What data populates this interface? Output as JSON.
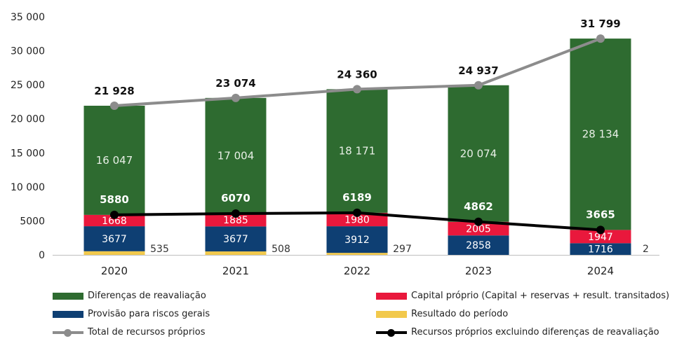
{
  "chart_data": {
    "type": "bar",
    "stacked": true,
    "categories": [
      "2020",
      "2021",
      "2022",
      "2023",
      "2024"
    ],
    "ylim": [
      0,
      35000
    ],
    "y_ticks": [
      "0",
      "5000",
      "10 000",
      "15 000",
      "20 000",
      "25 000",
      "30 000",
      "35 000"
    ],
    "y_tick_values": [
      0,
      5000,
      10000,
      15000,
      20000,
      25000,
      30000,
      35000
    ],
    "grid": false,
    "legend_position": "bottom",
    "series": [
      {
        "name": "Resultado do período",
        "color": "#F2C94C",
        "values": [
          535,
          508,
          297,
          0,
          2
        ],
        "labels": [
          "535",
          "508",
          "297",
          "",
          "2"
        ],
        "label_position": "outside-right"
      },
      {
        "name": "Provisão para riscos gerais",
        "color": "#0E3F73",
        "values": [
          3677,
          3677,
          3912,
          2858,
          1716
        ],
        "labels": [
          "3677",
          "3677",
          "3912",
          "2858",
          "1716"
        ]
      },
      {
        "name": "Capital próprio (Capital + reservas + result. transitados)",
        "color": "#E9183C",
        "values": [
          1668,
          1885,
          1980,
          2005,
          1947
        ],
        "labels": [
          "1668",
          "1885",
          "1980",
          "2005",
          "1947"
        ]
      },
      {
        "name": "Diferenças de reavaliação",
        "color": "#2E6B30",
        "values": [
          16047,
          17004,
          18171,
          20074,
          28134
        ],
        "labels": [
          "16 047",
          "17 004",
          "18 171",
          "20 074",
          "28 134"
        ]
      }
    ],
    "lines": [
      {
        "name": "Total de recursos próprios",
        "color": "#8C8C8C",
        "values": [
          21928,
          23074,
          24360,
          24937,
          31799
        ],
        "labels": [
          "21 928",
          "23 074",
          "24 360",
          "24 937",
          "31 799"
        ]
      },
      {
        "name": "Recursos próprios excluindo diferenças de reavaliação",
        "color": "#000000",
        "values": [
          5880,
          6070,
          6189,
          4862,
          3665
        ],
        "labels": [
          "5880",
          "6070",
          "6189",
          "4862",
          "3665"
        ]
      }
    ]
  },
  "legend": [
    {
      "label": "Diferenças de reavaliação",
      "kind": "box",
      "color": "#2E6B30"
    },
    {
      "label": "Capital próprio (Capital + reservas + result. transitados)",
      "kind": "box",
      "color": "#E9183C"
    },
    {
      "label": "Provisão para riscos gerais",
      "kind": "box",
      "color": "#0E3F73"
    },
    {
      "label": "Resultado do período",
      "kind": "box",
      "color": "#F2C94C"
    },
    {
      "label": "Total de recursos próprios",
      "kind": "line",
      "color": "#8C8C8C"
    },
    {
      "label": "Recursos próprios excluindo diferenças de reavaliação",
      "kind": "line",
      "color": "#000000"
    }
  ]
}
